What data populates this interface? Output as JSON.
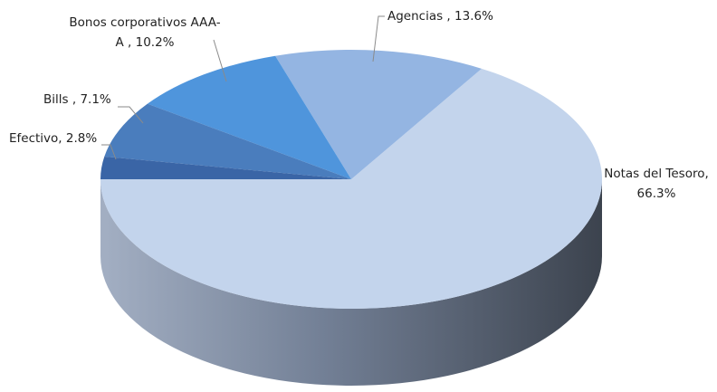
{
  "chart_data": {
    "type": "pie",
    "categories": [
      "Notas del Tesoro,",
      "Agencias ,",
      "Bonos corporativos AAA-A ,",
      "Bills ,",
      "Efectivo,"
    ],
    "values": [
      66.3,
      13.6,
      10.2,
      7.1,
      2.8
    ],
    "value_labels": [
      "66.3%",
      "13.6%",
      "10.2%",
      "7.1%",
      "2.8%"
    ],
    "colors": [
      "#c3d4ec",
      "#94b5e2",
      "#4f95dc",
      "#4a7dbd",
      "#3a65a6"
    ]
  }
}
